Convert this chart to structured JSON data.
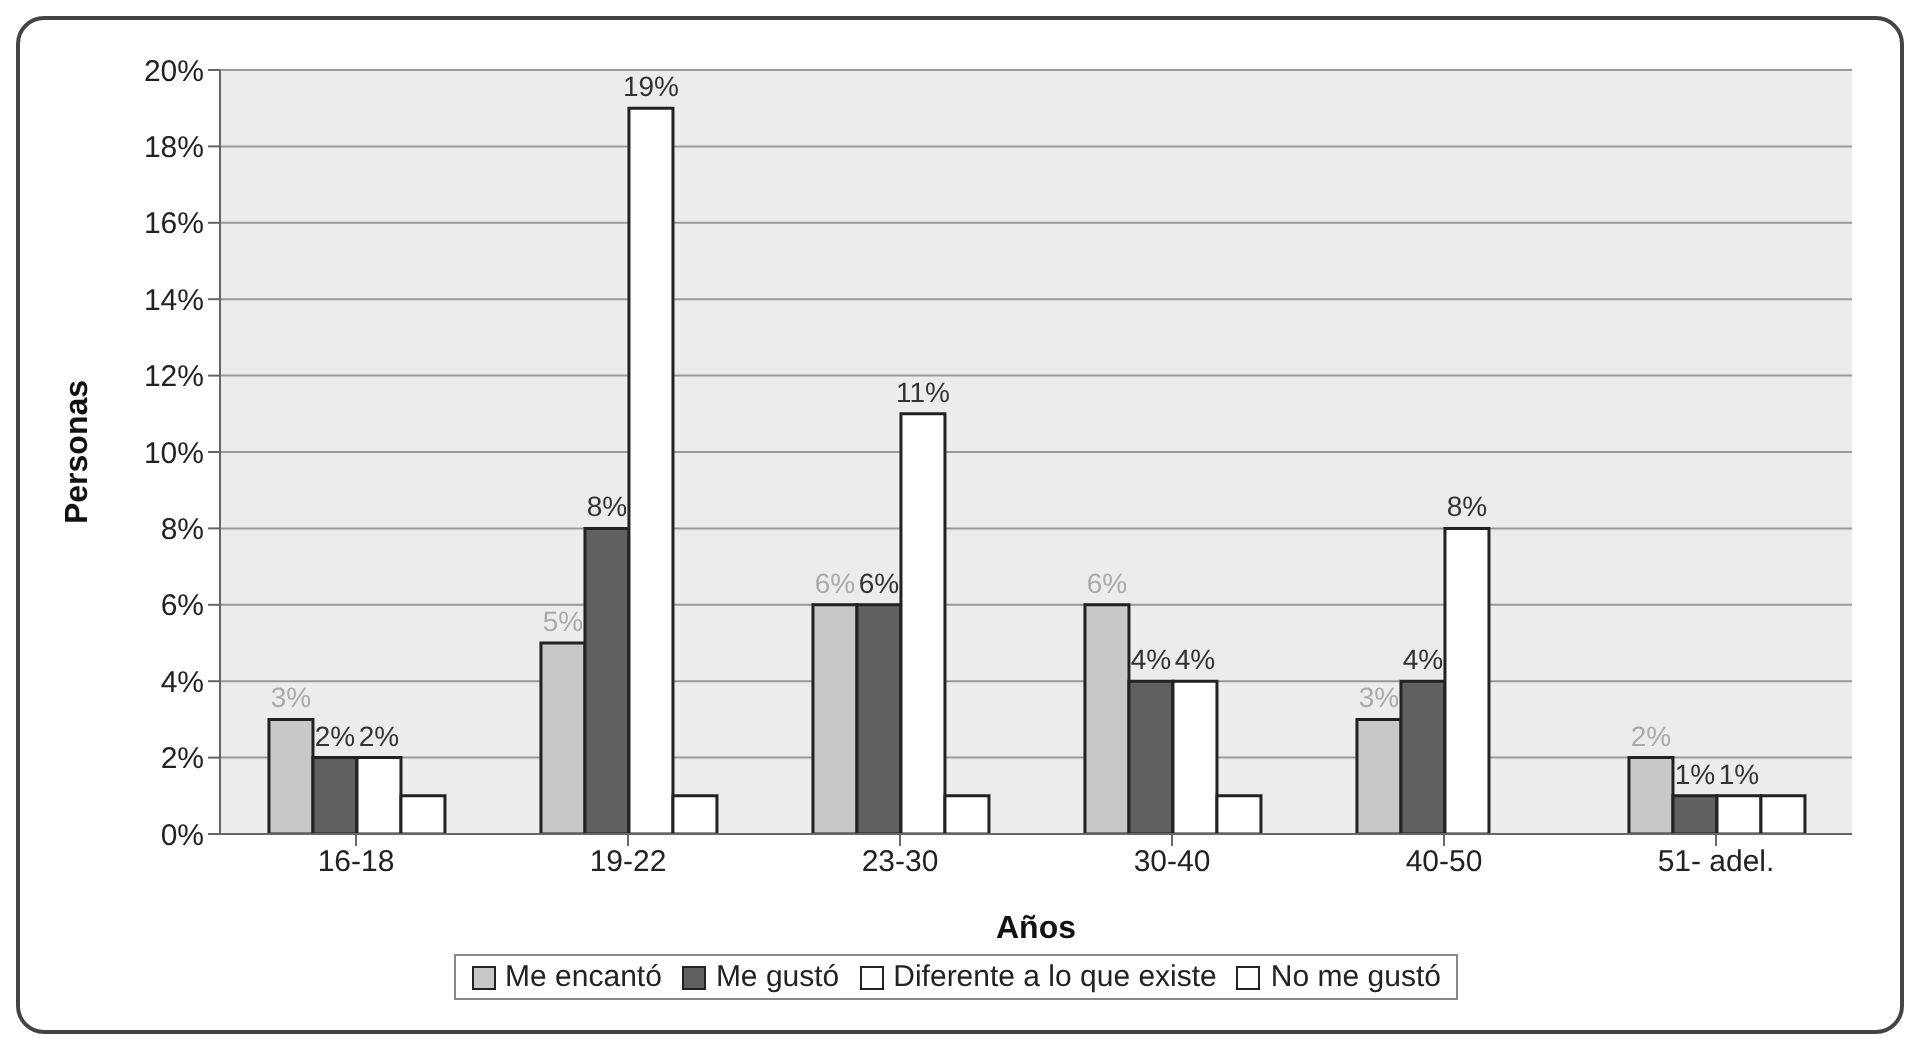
{
  "chart_data": {
    "type": "bar",
    "xlabel": "Años",
    "ylabel": "Personas",
    "categories": [
      "16-18",
      "19-22",
      "23-30",
      "30-40",
      "40-50",
      "51- adel."
    ],
    "series": [
      {
        "name": "Me encantó",
        "color": "#c8c8c8",
        "values": [
          3,
          5,
          6,
          6,
          3,
          2
        ],
        "value_labels": [
          "3%",
          "5%",
          "6%",
          "6%",
          "3%",
          "2%"
        ]
      },
      {
        "name": "Me gustó",
        "color": "#606060",
        "values": [
          2,
          8,
          6,
          4,
          4,
          1
        ],
        "value_labels": [
          "2%",
          "8%",
          "6%",
          "4%",
          "4%",
          "1%"
        ]
      },
      {
        "name": "Diferente a lo que existe",
        "color": "#ffffff",
        "values": [
          2,
          19,
          11,
          4,
          8,
          1
        ],
        "value_labels": [
          "2%",
          "19%",
          "11%",
          "4%",
          "8%",
          "1%"
        ]
      },
      {
        "name": "No me gustó",
        "color": "#ffffff",
        "values": [
          1,
          1,
          1,
          1,
          0,
          1
        ]
      }
    ],
    "ylim": [
      0,
      20
    ],
    "yticks": [
      {
        "value": 0,
        "label": "0%"
      },
      {
        "value": 2,
        "label": "2%"
      },
      {
        "value": 4,
        "label": "4%"
      },
      {
        "value": 6,
        "label": "6%"
      },
      {
        "value": 8,
        "label": "8%"
      },
      {
        "value": 10,
        "label": "10%"
      },
      {
        "value": 12,
        "label": "12%"
      },
      {
        "value": 14,
        "label": "14%"
      },
      {
        "value": 16,
        "label": "16%"
      },
      {
        "value": 18,
        "label": "18%"
      },
      {
        "value": 20,
        "label": "20%"
      }
    ],
    "grid": "y",
    "legend": "bottom"
  }
}
